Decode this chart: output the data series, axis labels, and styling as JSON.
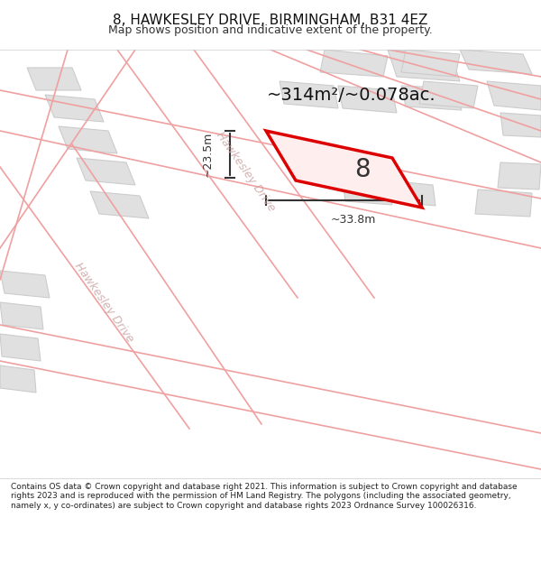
{
  "title": "8, HAWKESLEY DRIVE, BIRMINGHAM, B31 4EZ",
  "subtitle": "Map shows position and indicative extent of the property.",
  "area_text": "~314m²/~0.078ac.",
  "label_8": "8",
  "dim_height": "~23.5m",
  "dim_width": "~33.8m",
  "road_label_upper": "Hawkesley Drive",
  "road_label_lower": "Hawkesley Drive",
  "footer": "Contains OS data © Crown copyright and database right 2021. This information is subject to Crown copyright and database rights 2023 and is reproduced with the permission of HM Land Registry. The polygons (including the associated geometry, namely x, y co-ordinates) are subject to Crown copyright and database rights 2023 Ordnance Survey 100026316.",
  "bg_color": "#ffffff",
  "map_bg": "#f5f5f5",
  "building_fill": "#e0e0e0",
  "building_edge": "#cccccc",
  "road_line_color": "#f0a0a0",
  "road_fill_color": "#ffffff",
  "highlight_color": "#dd0000",
  "dim_color": "#333333",
  "text_color": "#333333",
  "road_text_color": "#c8a0a0"
}
